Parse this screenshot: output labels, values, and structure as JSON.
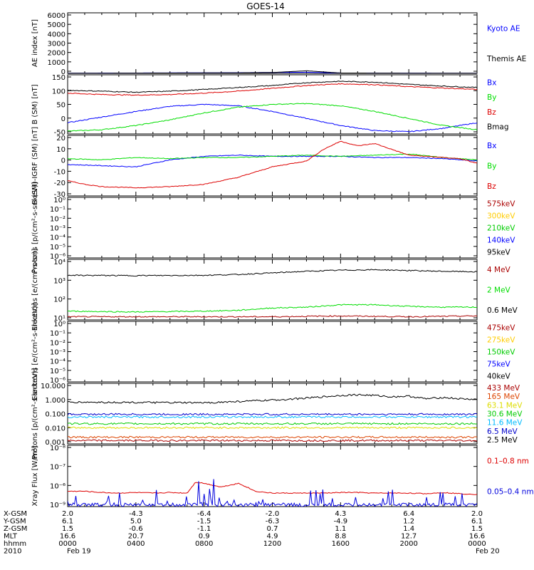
{
  "title": "GOES-14",
  "chart_data": [
    {
      "type": "line",
      "ylabel": "AE index [nT]",
      "yticks": [
        "6000",
        "5000",
        "4000",
        "3000",
        "2000",
        "1000",
        "0"
      ],
      "ylim": [
        0,
        6500
      ],
      "series": [
        {
          "name": "Kyoto AE",
          "color": "#0000ff",
          "x": [
            0,
            4,
            8,
            10,
            12,
            14,
            16,
            20,
            24
          ],
          "y": [
            30,
            40,
            60,
            70,
            100,
            120,
            40,
            30,
            20
          ]
        },
        {
          "name": "Themis AE",
          "color": "#000000",
          "x": [
            0,
            4,
            8,
            10,
            12,
            14,
            16,
            20,
            24
          ],
          "y": [
            20,
            30,
            50,
            60,
            90,
            280,
            40,
            25,
            20
          ]
        }
      ]
    },
    {
      "type": "line",
      "ylabel": "B (SM) [nT]",
      "yticks": [
        "150",
        "100",
        "50",
        "0",
        "-50"
      ],
      "ylim": [
        -60,
        150
      ],
      "series": [
        {
          "name": "Bx",
          "color": "#0000ff",
          "x": [
            0,
            2,
            4,
            6,
            8,
            10,
            12,
            14,
            16,
            18,
            20,
            22,
            24
          ],
          "y": [
            -20,
            0,
            20,
            38,
            45,
            40,
            20,
            -5,
            -30,
            -48,
            -52,
            -40,
            -20
          ]
        },
        {
          "name": "By",
          "color": "#00dd00",
          "x": [
            0,
            2,
            4,
            6,
            8,
            10,
            12,
            14,
            16,
            18,
            20,
            22,
            24
          ],
          "y": [
            -50,
            -45,
            -30,
            -10,
            15,
            35,
            45,
            48,
            40,
            20,
            -5,
            -30,
            -45
          ]
        },
        {
          "name": "Bz",
          "color": "#dd0000",
          "x": [
            0,
            2,
            4,
            6,
            8,
            10,
            12,
            14,
            16,
            18,
            20,
            22,
            24
          ],
          "y": [
            85,
            80,
            78,
            80,
            85,
            92,
            102,
            112,
            118,
            115,
            108,
            103,
            98
          ]
        },
        {
          "name": "Bmag",
          "color": "#000000",
          "x": [
            0,
            2,
            4,
            6,
            8,
            10,
            12,
            14,
            16,
            18,
            20,
            22,
            24
          ],
          "y": [
            95,
            92,
            88,
            92,
            98,
            105,
            112,
            122,
            127,
            124,
            116,
            110,
            105
          ]
        }
      ]
    },
    {
      "type": "line",
      "ylabel": "B (SM)-IGRF (SM) [nT]",
      "yticks": [
        "20",
        "10",
        "0",
        "-10",
        "-20",
        "-30"
      ],
      "ylim": [
        -30,
        22
      ],
      "series": [
        {
          "name": "Bx",
          "color": "#0000ff",
          "x": [
            0,
            2,
            4,
            6,
            8,
            10,
            12,
            14,
            16,
            18,
            20,
            22,
            24
          ],
          "y": [
            -3,
            -4,
            -5,
            1,
            4,
            5,
            4,
            4,
            4,
            3,
            3,
            2,
            0
          ]
        },
        {
          "name": "By",
          "color": "#00dd00",
          "x": [
            0,
            2,
            4,
            6,
            8,
            10,
            12,
            14,
            16,
            18,
            20,
            22,
            24
          ],
          "y": [
            2,
            1,
            3,
            2,
            3,
            3,
            4,
            5,
            4,
            5,
            6,
            3,
            1
          ]
        },
        {
          "name": "Bz",
          "color": "#dd0000",
          "x": [
            0,
            1,
            2,
            4,
            6,
            8,
            10,
            12,
            14,
            15,
            16,
            17,
            18,
            19,
            20,
            21,
            22,
            23,
            24
          ],
          "y": [
            -17,
            -20,
            -22,
            -23,
            -22,
            -20,
            -14,
            -5,
            0,
            10,
            17,
            13,
            15,
            10,
            5,
            4,
            3,
            2,
            -2
          ]
        }
      ]
    },
    {
      "type": "line",
      "ylabel": "Protons [p/(cm²-s-sr-keV)]",
      "yticks": [
        "10⁰",
        "10⁻¹",
        "10⁻²",
        "10⁻³",
        "10⁻⁴",
        "10⁻⁵",
        "10⁻⁶"
      ],
      "ylim": [
        -6,
        0
      ],
      "log": true,
      "series": [
        {
          "name": "575keV",
          "color": "#aa0000"
        },
        {
          "name": "300keV",
          "color": "#ffcc00"
        },
        {
          "name": "210keV",
          "color": "#00cc00"
        },
        {
          "name": "140keV",
          "color": "#0000ff"
        },
        {
          "name": "95keV",
          "color": "#000000"
        }
      ]
    },
    {
      "type": "line",
      "ylabel": "Electrons [e/(cm²-s-sr)]",
      "yticks": [
        "10⁴",
        "10³",
        "10²",
        "10¹"
      ],
      "ylim": [
        1,
        4.8
      ],
      "log": true,
      "series": [
        {
          "name": "4 MeV",
          "color": "#aa0000",
          "x": [
            0,
            6,
            12,
            16,
            20,
            24
          ],
          "y": [
            1.2,
            1.2,
            1.2,
            1.25,
            1.2,
            1.25
          ]
        },
        {
          "name": "2 MeV",
          "color": "#00dd00",
          "x": [
            0,
            4,
            8,
            10,
            12,
            14,
            16,
            18,
            20,
            22,
            24
          ],
          "y": [
            1.55,
            1.5,
            1.55,
            1.6,
            1.75,
            1.8,
            1.95,
            1.95,
            1.85,
            1.8,
            1.8
          ]
        },
        {
          "name": "0.6 MeV",
          "color": "#000000",
          "x": [
            0,
            4,
            8,
            10,
            12,
            14,
            16,
            18,
            20,
            22,
            24
          ],
          "y": [
            3.8,
            3.78,
            3.8,
            3.85,
            3.95,
            4.05,
            4.12,
            4.15,
            4.1,
            4.05,
            4.02
          ]
        }
      ]
    },
    {
      "type": "line",
      "ylabel": "Electrons [e/(cm²-s-sr-keV)]",
      "yticks": [
        "10⁰",
        "10⁻¹",
        "10⁻²",
        "10⁻³",
        "10⁻⁴",
        "10⁻⁵",
        "10⁻⁶"
      ],
      "ylim": [
        -6,
        0
      ],
      "log": true,
      "series": [
        {
          "name": "475keV",
          "color": "#aa0000"
        },
        {
          "name": "275keV",
          "color": "#ffcc00"
        },
        {
          "name": "150keV",
          "color": "#00cc00"
        },
        {
          "name": "75keV",
          "color": "#0000ff"
        },
        {
          "name": "40keV",
          "color": "#000000"
        }
      ]
    },
    {
      "type": "line",
      "ylabel": "Protons [p/(cm²-s-sr-keV)]",
      "yticks": [
        "10.000",
        "1.000",
        "0.100",
        "0.010",
        "0.001"
      ],
      "ylim": [
        -3,
        1.5
      ],
      "log": true,
      "series": [
        {
          "name": "433 MeV",
          "color": "#aa0000",
          "x": [
            0,
            24
          ],
          "y": [
            -2.75,
            -2.75
          ]
        },
        {
          "name": "165 MeV",
          "color": "#dd4400",
          "x": [
            0,
            24
          ],
          "y": [
            -2.5,
            -2.5
          ]
        },
        {
          "name": "63.1 MeV",
          "color": "#dddd00",
          "x": [
            0,
            24
          ],
          "y": [
            -1.8,
            -1.8
          ]
        },
        {
          "name": "30.6 MeV",
          "color": "#00cc00",
          "x": [
            0,
            24
          ],
          "y": [
            -1.5,
            -1.5
          ]
        },
        {
          "name": "11.6 MeV",
          "color": "#00bbff",
          "x": [
            0,
            24
          ],
          "y": [
            -1.0,
            -1.0
          ]
        },
        {
          "name": "6.5 MeV",
          "color": "#0000cc",
          "x": [
            0,
            24
          ],
          "y": [
            -0.8,
            -0.8
          ]
        },
        {
          "name": "2.5 MeV",
          "color": "#000000",
          "x": [
            0,
            4,
            8,
            10,
            12,
            14,
            15,
            16,
            17,
            18,
            19,
            20,
            21,
            22,
            23,
            24
          ],
          "y": [
            0.1,
            0.08,
            0.05,
            0.15,
            0.25,
            0.4,
            0.5,
            0.6,
            0.65,
            0.6,
            0.5,
            0.55,
            0.35,
            0.45,
            0.35,
            0.3
          ]
        }
      ]
    },
    {
      "type": "line",
      "ylabel": "Xray Flux [W/m²]",
      "yticks": [
        "10⁻⁸",
        "10⁻⁷",
        "10⁻⁶",
        "10⁻⁹"
      ],
      "ylim": [
        -9,
        -8
      ],
      "log": true,
      "series": [
        {
          "name": "0.1–0.8 nm",
          "color": "#dd0000",
          "x": [
            0,
            1,
            2,
            3,
            4,
            5,
            6,
            7,
            7.5,
            8,
            9,
            10,
            10.5,
            11,
            12,
            13,
            14,
            15,
            16,
            17,
            18,
            19,
            20,
            21,
            22,
            23,
            24
          ],
          "y": [
            -8.75,
            -8.75,
            -8.77,
            -8.78,
            -8.77,
            -8.78,
            -8.77,
            -8.78,
            -8.6,
            -8.62,
            -8.68,
            -8.62,
            -8.68,
            -8.75,
            -8.78,
            -8.78,
            -8.78,
            -8.78,
            -8.77,
            -8.77,
            -8.78,
            -8.78,
            -8.78,
            -8.79,
            -8.77,
            -8.79,
            -8.8
          ]
        },
        {
          "name": "0.05–0.4 nm",
          "color": "#0000dd"
        }
      ]
    }
  ],
  "legends": [
    [
      {
        "label": "Kyoto AE",
        "color": "#0000ff"
      },
      {
        "label": "Themis AE",
        "color": "#000000"
      }
    ],
    [
      {
        "label": "Bx",
        "color": "#0000ff"
      },
      {
        "label": "By",
        "color": "#00dd00"
      },
      {
        "label": "Bz",
        "color": "#dd0000"
      },
      {
        "label": "Bmag",
        "color": "#000000"
      }
    ],
    [
      {
        "label": "Bx",
        "color": "#0000ff"
      },
      {
        "label": "By",
        "color": "#00dd00"
      },
      {
        "label": "Bz",
        "color": "#dd0000"
      }
    ],
    [
      {
        "label": "575keV",
        "color": "#aa0000"
      },
      {
        "label": "300keV",
        "color": "#ffcc00"
      },
      {
        "label": "210keV",
        "color": "#00cc00"
      },
      {
        "label": "140keV",
        "color": "#0000ff"
      },
      {
        "label": "95keV",
        "color": "#000000"
      }
    ],
    [
      {
        "label": "4 MeV",
        "color": "#aa0000"
      },
      {
        "label": "2 MeV",
        "color": "#00dd00"
      },
      {
        "label": "0.6 MeV",
        "color": "#000000"
      }
    ],
    [
      {
        "label": "475keV",
        "color": "#aa0000"
      },
      {
        "label": "275keV",
        "color": "#ffcc00"
      },
      {
        "label": "150keV",
        "color": "#00cc00"
      },
      {
        "label": "75keV",
        "color": "#0000ff"
      },
      {
        "label": "40keV",
        "color": "#000000"
      }
    ],
    [
      {
        "label": "433 MeV",
        "color": "#aa0000"
      },
      {
        "label": "165 MeV",
        "color": "#dd4400"
      },
      {
        "label": "63.1 MeV",
        "color": "#dddd00"
      },
      {
        "label": "30.6 MeV",
        "color": "#00cc00"
      },
      {
        "label": "11.6 MeV",
        "color": "#00bbff"
      },
      {
        "label": "6.5 MeV",
        "color": "#0000cc"
      },
      {
        "label": "2.5 MeV",
        "color": "#000000"
      }
    ],
    [
      {
        "label": "0.1–0.8 nm",
        "color": "#dd0000"
      },
      {
        "label": "0.05–0.4 nm",
        "color": "#0000dd"
      }
    ]
  ],
  "footer": {
    "labels": [
      "X-GSM",
      "Y-GSM",
      "Z-GSM",
      "MLT",
      "hhmm",
      "2010"
    ],
    "rows": [
      [
        "2.0",
        "-4.3",
        "-6.4",
        "-2.0",
        "4.3",
        "6.4",
        "2.0"
      ],
      [
        "6.1",
        "5.0",
        "-1.5",
        "-6.3",
        "-4.9",
        "1.2",
        "6.1"
      ],
      [
        "1.5",
        "-0.6",
        "-1.1",
        "0.7",
        "1.1",
        "1.4",
        "1.5"
      ],
      [
        "16.6",
        "20.7",
        "0.9",
        "4.9",
        "8.8",
        "12.7",
        "16.6"
      ],
      [
        "0000",
        "0400",
        "0800",
        "1200",
        "1600",
        "2000",
        "0000"
      ]
    ],
    "dates": [
      "Feb 19",
      "Feb 20"
    ]
  }
}
